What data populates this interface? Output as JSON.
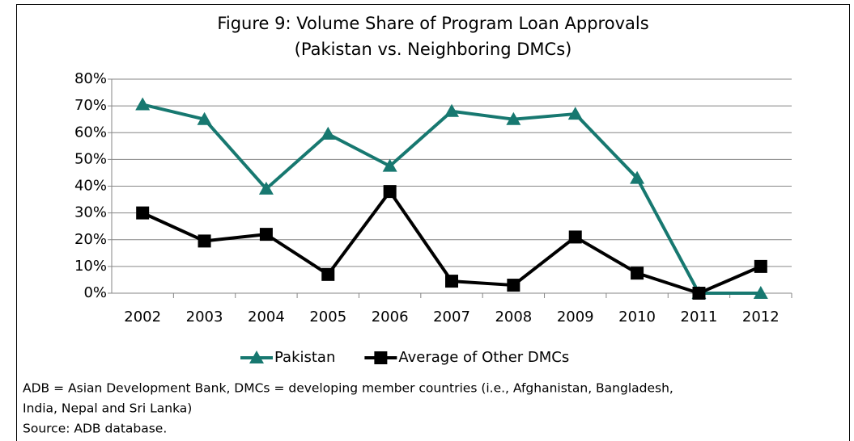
{
  "chart_data": {
    "type": "line",
    "title": [
      "Figure 9: Volume Share of Program Loan Approvals",
      "(Pakistan vs. Neighboring DMCs)"
    ],
    "categories": [
      "2002",
      "2003",
      "2004",
      "2005",
      "2006",
      "2007",
      "2008",
      "2009",
      "2010",
      "2011",
      "2012"
    ],
    "series": [
      {
        "name": "Pakistan",
        "color": "#177870",
        "marker": "triangle",
        "values": [
          70.5,
          65,
          39,
          59.5,
          47.5,
          68,
          65,
          67,
          43,
          0,
          0
        ]
      },
      {
        "name": "Average of Other DMCs",
        "color": "#000000",
        "marker": "square",
        "values": [
          30,
          19.5,
          22,
          7,
          38,
          4.5,
          3,
          21,
          7.5,
          0,
          10
        ]
      }
    ],
    "ylim": [
      0,
      80
    ],
    "yticks": [
      {
        "value": 0,
        "label": "0%"
      },
      {
        "value": 10,
        "label": "10%"
      },
      {
        "value": 20,
        "label": "20%"
      },
      {
        "value": 30,
        "label": "30%"
      },
      {
        "value": 40,
        "label": "40%"
      },
      {
        "value": 50,
        "label": "50%"
      },
      {
        "value": 60,
        "label": "60%"
      },
      {
        "value": 70,
        "label": "70%"
      },
      {
        "value": 80,
        "label": "80%"
      }
    ],
    "grid": true,
    "legend": "bottom",
    "notes": [
      "ADB = Asian Development Bank, DMCs = developing member countries (i.e., Afghanistan, Bangladesh,",
      "India, Nepal and Sri Lanka)",
      "Source: ADB database."
    ]
  }
}
